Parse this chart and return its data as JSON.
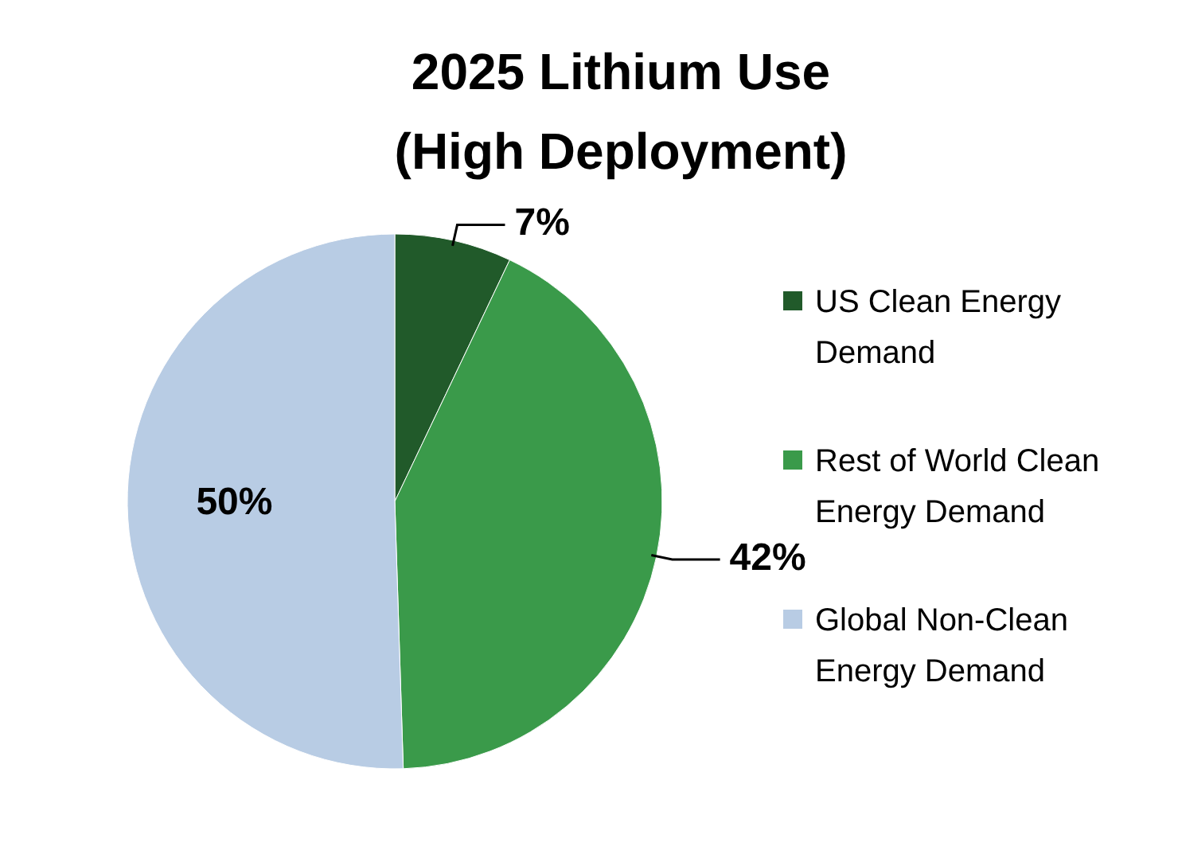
{
  "chart_data": {
    "type": "pie",
    "title": "2025 Lithium Use\n(High Deployment)",
    "categories": [
      "US Clean Energy Demand",
      "Rest of World Clean Energy Demand",
      "Global Non-Clean Energy Demand"
    ],
    "values": [
      7,
      42,
      50
    ],
    "colors": [
      "#215a2a",
      "#3a9a4a",
      "#b8cce4"
    ],
    "value_labels": [
      "7%",
      "42%",
      "50%"
    ],
    "legend": "right"
  }
}
